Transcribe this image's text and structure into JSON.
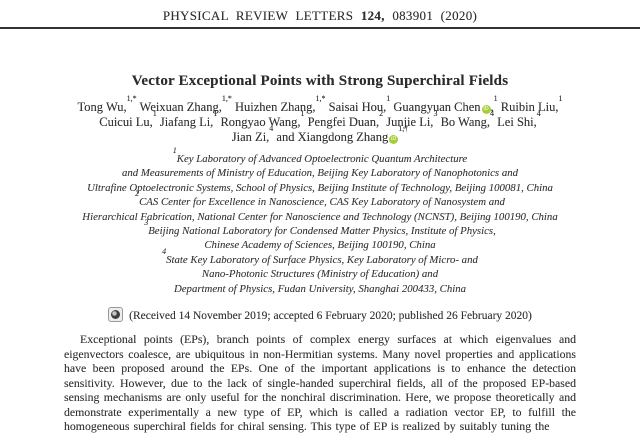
{
  "page": {
    "background": "#ffffff",
    "text_color": "#383838",
    "orcid_green": "#a6ce39"
  },
  "header": {
    "journal_name": "PHYSICAL REVIEW LETTERS",
    "volume_bold": "124,",
    "article_number": "083901 (2020)"
  },
  "title": "Vector Exceptional Points with Strong Superchiral Fields",
  "icons": {
    "orcid_label": "iD",
    "badge_name": "article-badge-icon"
  },
  "authors": {
    "line1": [
      {
        "name": "Tong Wu,",
        "sup": "1,*"
      },
      {
        "name": "Weixuan Zhang,",
        "sup": "1,*"
      },
      {
        "name": "Huizhen Zhang,",
        "sup": "1,*"
      },
      {
        "name": "Saisai Hou,",
        "sup": "1"
      },
      {
        "name": "Guangyuan Chen",
        "after_icon": ",",
        "sup": "1"
      },
      {
        "name": "Ruibin Liu,",
        "sup": "1"
      }
    ],
    "line2": [
      {
        "name": "Cuicui Lu,",
        "sup": "1"
      },
      {
        "name": "Jiafang Li,",
        "sup": "1"
      },
      {
        "name": "Rongyao Wang,",
        "sup": "1"
      },
      {
        "name": "Pengfei Duan,",
        "sup": "2"
      },
      {
        "name": "Junjie Li,",
        "sup": "3"
      },
      {
        "name": "Bo Wang,",
        "sup": "4"
      },
      {
        "name": "Lei Shi,",
        "sup": "4"
      }
    ],
    "line3": [
      {
        "name": "Jian Zi,",
        "sup": "4"
      },
      {
        "name": "and Xiangdong Zhang",
        "sup": "1,†"
      }
    ]
  },
  "affiliations": [
    {
      "sup": "1",
      "text": "Key Laboratory of Advanced Optoelectronic Quantum Architecture"
    },
    {
      "sup": "",
      "text": "and Measurements of Ministry of Education, Beijing Key Laboratory of Nanophotonics and"
    },
    {
      "sup": "",
      "text": "Ultrafine Optoelectronic Systems, School of Physics, Beijing Institute of Technology, Beijing 100081, China"
    },
    {
      "sup": "2",
      "text": "CAS Center for Excellence in Nanoscience, CAS Key Laboratory of Nanosystem and"
    },
    {
      "sup": "",
      "text": "Hierarchical Fabrication, National Center for Nanoscience and Technology (NCNST), Beijing 100190, China"
    },
    {
      "sup": "3",
      "text": "Beijing National Laboratory for Condensed Matter Physics, Institute of Physics,"
    },
    {
      "sup": "",
      "text": "Chinese Academy of Sciences, Beijing 100190, China"
    },
    {
      "sup": "4",
      "text": "State Key Laboratory of Surface Physics, Key Laboratory of Micro- and"
    },
    {
      "sup": "",
      "text": "Nano-Photonic Structures (Ministry of Education) and"
    },
    {
      "sup": "",
      "text": "Department of Physics, Fudan University, Shanghai 200433, China"
    }
  ],
  "dates_line": "(Received 14 November 2019; accepted 6 February 2020; published 26 February 2020)",
  "abstract": "Exceptional points (EPs), branch points of complex energy surfaces at which eigenvalues and eigenvectors coalesce, are ubiquitous in non-Hermitian systems. Many novel properties and applications have been proposed around the EPs. One of the important applications is to enhance the detection sensitivity. However, due to the lack of single-handed superchiral fields, all of the proposed EP-based sensing mechanisms are only useful for the nonchiral discrimination. Here, we propose theoretically and demonstrate experimentally a new type of EP, which is called a radiation vector EP, to fulfill the homogeneous superchiral fields for chiral sensing. This type of EP is realized by suitably tuning the"
}
